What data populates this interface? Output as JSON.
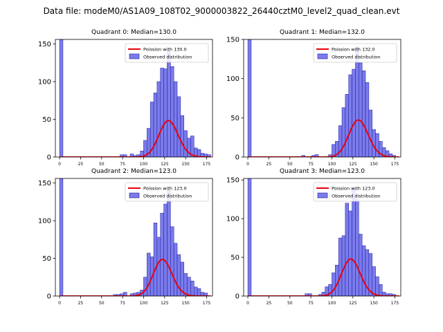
{
  "suptitle": "Data file: modeM0/AS1A09_108T02_9000003822_26440cztM0_level2_quad_clean.evt",
  "colors": {
    "bar_fill": "#7b7bea",
    "bar_edge": "#1a1aa0",
    "curve": "#e8000b"
  },
  "chart_data": [
    {
      "type": "bar",
      "title": "Quadrant 0: Median=130.0",
      "xlim": [
        -5,
        182
      ],
      "ylim": [
        0,
        156
      ],
      "xticks": [
        0,
        25,
        50,
        75,
        100,
        125,
        150,
        175
      ],
      "yticks": [
        0,
        50,
        100,
        150
      ],
      "bin_width": 4,
      "legend": [
        "Poission with 130.0",
        "Observed distribution"
      ],
      "legend_loc": "top-right",
      "bars": [
        [
          0,
          156
        ],
        [
          72,
          3
        ],
        [
          76,
          3
        ],
        [
          84,
          4
        ],
        [
          88,
          2
        ],
        [
          92,
          3
        ],
        [
          96,
          8
        ],
        [
          100,
          22
        ],
        [
          104,
          38
        ],
        [
          108,
          73
        ],
        [
          112,
          85
        ],
        [
          116,
          100
        ],
        [
          120,
          118
        ],
        [
          124,
          117
        ],
        [
          128,
          140
        ],
        [
          132,
          120
        ],
        [
          136,
          100
        ],
        [
          140,
          80
        ],
        [
          144,
          55
        ],
        [
          148,
          35
        ],
        [
          152,
          25
        ],
        [
          156,
          28
        ],
        [
          160,
          12
        ],
        [
          164,
          10
        ],
        [
          168,
          5
        ],
        [
          172,
          4
        ],
        [
          176,
          3
        ]
      ],
      "poisson_mu": 130.0,
      "poisson_scale": 1380
    },
    {
      "type": "bar",
      "title": "Quadrant 1: Median=132.0",
      "xlim": [
        -5,
        182
      ],
      "ylim": [
        0,
        150
      ],
      "xticks": [
        0,
        25,
        50,
        75,
        100,
        125,
        150,
        175
      ],
      "yticks": [
        0,
        50,
        100,
        150
      ],
      "bin_width": 4,
      "legend": [
        "Poission with 132.0",
        "Observed distribution"
      ],
      "legend_loc": "top-right",
      "bars": [
        [
          0,
          150
        ],
        [
          64,
          2
        ],
        [
          76,
          2
        ],
        [
          80,
          3
        ],
        [
          96,
          3
        ],
        [
          100,
          16
        ],
        [
          104,
          20
        ],
        [
          108,
          40
        ],
        [
          112,
          63
        ],
        [
          116,
          80
        ],
        [
          120,
          105
        ],
        [
          124,
          112
        ],
        [
          128,
          140
        ],
        [
          132,
          120
        ],
        [
          136,
          110
        ],
        [
          140,
          95
        ],
        [
          144,
          60
        ],
        [
          148,
          35
        ],
        [
          152,
          30
        ],
        [
          156,
          20
        ],
        [
          160,
          12
        ],
        [
          164,
          8
        ],
        [
          168,
          4
        ],
        [
          172,
          2
        ]
      ],
      "poisson_mu": 132.0,
      "poisson_scale": 1360
    },
    {
      "type": "bar",
      "title": "Quadrant 2: Median=123.0",
      "xlim": [
        -5,
        182
      ],
      "ylim": [
        0,
        156
      ],
      "xticks": [
        0,
        25,
        50,
        75,
        100,
        125,
        150,
        175
      ],
      "yticks": [
        0,
        50,
        100,
        150
      ],
      "bin_width": 4,
      "legend": [
        "Poission with 123.0",
        "Observed distribution"
      ],
      "legend_loc": "top-right",
      "bars": [
        [
          0,
          156
        ],
        [
          64,
          2
        ],
        [
          68,
          2
        ],
        [
          72,
          3
        ],
        [
          76,
          5
        ],
        [
          84,
          3
        ],
        [
          88,
          4
        ],
        [
          92,
          5
        ],
        [
          96,
          8
        ],
        [
          100,
          25
        ],
        [
          104,
          57
        ],
        [
          108,
          52
        ],
        [
          112,
          97
        ],
        [
          116,
          78
        ],
        [
          120,
          110
        ],
        [
          124,
          122
        ],
        [
          128,
          140
        ],
        [
          132,
          92
        ],
        [
          136,
          70
        ],
        [
          140,
          55
        ],
        [
          144,
          45
        ],
        [
          148,
          30
        ],
        [
          152,
          25
        ],
        [
          156,
          20
        ],
        [
          160,
          12
        ],
        [
          164,
          10
        ],
        [
          168,
          5
        ],
        [
          172,
          4
        ]
      ],
      "poisson_mu": 123.0,
      "poisson_scale": 1350
    },
    {
      "type": "bar",
      "title": "Quadrant 3: Median=123.0",
      "xlim": [
        -5,
        182
      ],
      "ylim": [
        0,
        152
      ],
      "xticks": [
        0,
        25,
        50,
        75,
        100,
        125,
        150,
        175
      ],
      "yticks": [
        0,
        50,
        100,
        150
      ],
      "bin_width": 4,
      "legend": [
        "Poission with 123.0",
        "Observed distribution"
      ],
      "legend_loc": "top-right",
      "bars": [
        [
          0,
          152
        ],
        [
          68,
          3
        ],
        [
          72,
          3
        ],
        [
          84,
          2
        ],
        [
          88,
          5
        ],
        [
          92,
          12
        ],
        [
          96,
          15
        ],
        [
          100,
          30
        ],
        [
          104,
          40
        ],
        [
          108,
          75
        ],
        [
          112,
          78
        ],
        [
          116,
          120
        ],
        [
          120,
          110
        ],
        [
          124,
          140
        ],
        [
          128,
          125
        ],
        [
          132,
          80
        ],
        [
          136,
          65
        ],
        [
          140,
          60
        ],
        [
          144,
          55
        ],
        [
          148,
          38
        ],
        [
          152,
          25
        ],
        [
          156,
          15
        ],
        [
          160,
          5
        ],
        [
          164,
          3
        ],
        [
          168,
          3
        ],
        [
          172,
          2
        ]
      ],
      "poisson_mu": 123.0,
      "poisson_scale": 1330
    }
  ]
}
